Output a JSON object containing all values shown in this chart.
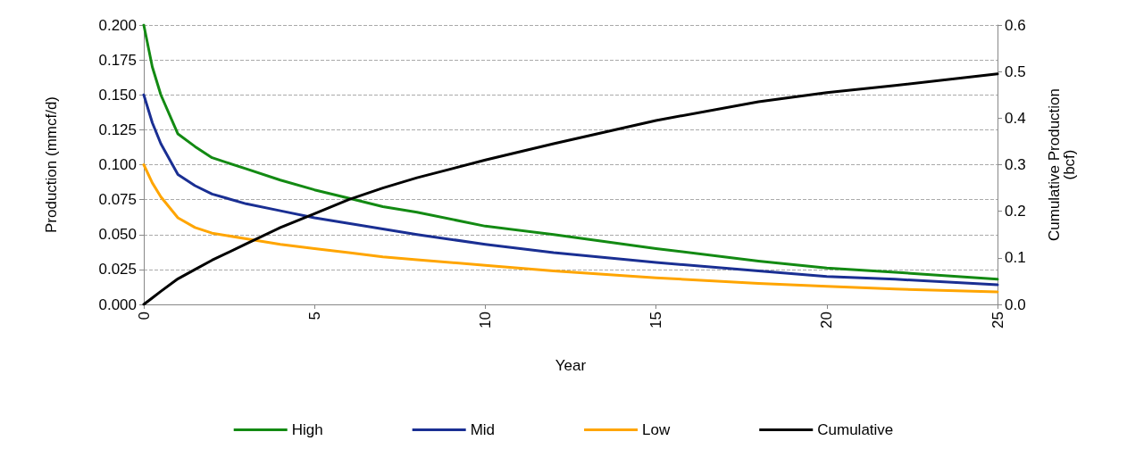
{
  "chart_data": {
    "type": "line",
    "xlabel": "Year",
    "ylabel": "Production (mmcf/d)",
    "y2label": "Cumulative Production\n(bcf)",
    "x": [
      0,
      0.25,
      0.5,
      1,
      1.5,
      2,
      3,
      4,
      5,
      6,
      7,
      8,
      10,
      12,
      15,
      18,
      20,
      22,
      25
    ],
    "series": [
      {
        "name": "High",
        "color": "#138a13",
        "values": [
          0.2,
          0.17,
          0.15,
          0.122,
          0.113,
          0.105,
          0.097,
          0.089,
          0.082,
          0.076,
          0.07,
          0.066,
          0.056,
          0.05,
          0.04,
          0.031,
          0.026,
          0.023,
          0.018
        ]
      },
      {
        "name": "Mid",
        "color": "#1a2f93",
        "values": [
          0.15,
          0.13,
          0.115,
          0.093,
          0.085,
          0.079,
          0.072,
          0.067,
          0.062,
          0.058,
          0.054,
          0.05,
          0.043,
          0.037,
          0.03,
          0.024,
          0.02,
          0.018,
          0.014
        ]
      },
      {
        "name": "Low",
        "color": "#ffa500",
        "values": [
          0.1,
          0.087,
          0.077,
          0.062,
          0.055,
          0.051,
          0.047,
          0.043,
          0.04,
          0.037,
          0.034,
          0.032,
          0.028,
          0.024,
          0.019,
          0.015,
          0.013,
          0.011,
          0.009
        ]
      },
      {
        "name": "Cumulative",
        "color": "#000000",
        "axis": "y2",
        "values": [
          0,
          0.014,
          0.028,
          0.055,
          0.075,
          0.095,
          0.13,
          0.165,
          0.195,
          0.225,
          0.25,
          0.272,
          0.31,
          0.345,
          0.395,
          0.435,
          0.455,
          0.47,
          0.495
        ]
      }
    ],
    "xlim": [
      0,
      25
    ],
    "xticks": [
      0,
      5,
      10,
      15,
      20,
      25
    ],
    "ylim": [
      0,
      0.2
    ],
    "yticks": [
      {
        "value": 0,
        "label": "0.000"
      },
      0.025,
      {
        "value": 0.05,
        "label": "0.050"
      },
      0.075,
      {
        "value": 0.1,
        "label": "0.100"
      },
      0.125,
      {
        "value": 0.15,
        "label": "0.150"
      },
      0.175,
      {
        "value": 0.2,
        "label": "0.200"
      }
    ],
    "y2lim": [
      0,
      0.6
    ],
    "y2ticks": [
      {
        "value": 0,
        "label": "0.0"
      },
      0.1,
      0.2,
      0.3,
      0.4,
      0.5,
      0.6
    ],
    "grid": "y",
    "legend": "bottom",
    "marker": "none",
    "line_style": "solid"
  }
}
